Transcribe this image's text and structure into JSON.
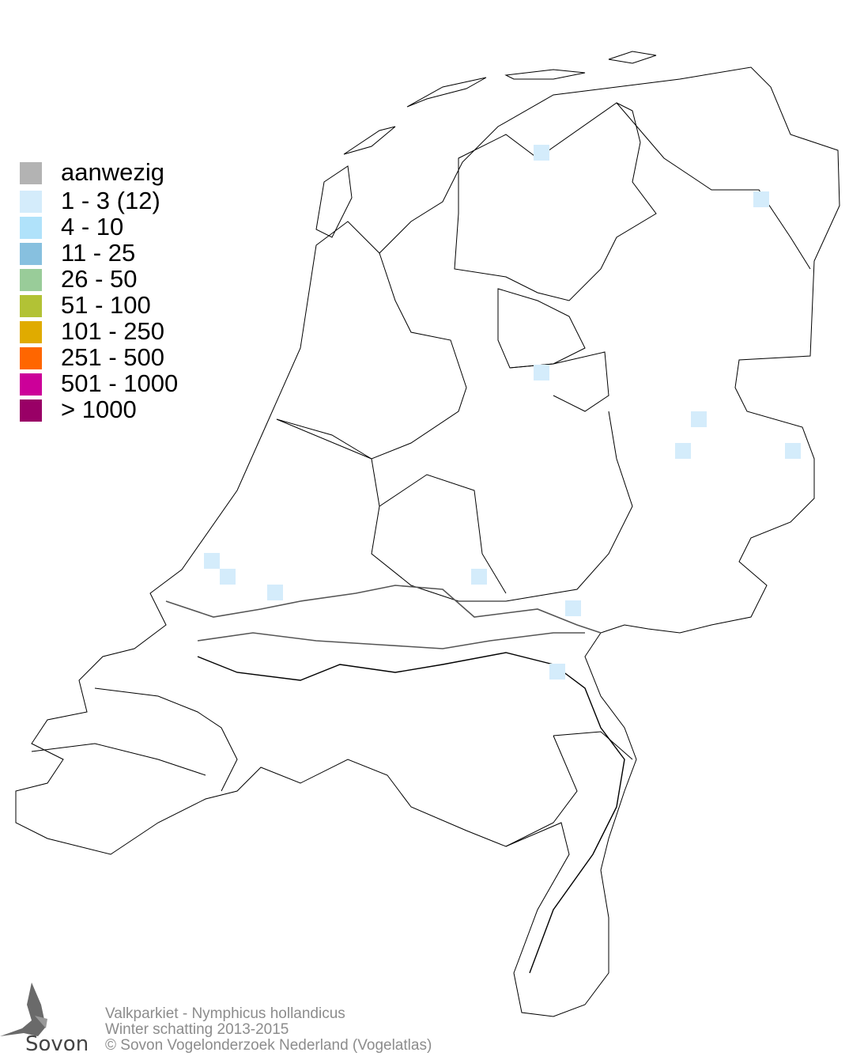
{
  "legend": {
    "items": [
      {
        "label": "aanwezig",
        "color": "#b3b3b3"
      },
      {
        "label": "1 - 3 (12)",
        "color": "#d4ecfb"
      },
      {
        "label": "4 - 10",
        "color": "#b0e2fa"
      },
      {
        "label": "11 - 25",
        "color": "#87c0df"
      },
      {
        "label": "26 - 50",
        "color": "#99cc99"
      },
      {
        "label": "51 - 100",
        "color": "#b2c235"
      },
      {
        "label": "101 - 250",
        "color": "#e0ab00"
      },
      {
        "label": "251 - 500",
        "color": "#ff6600"
      },
      {
        "label": "501 - 1000",
        "color": "#cc0099"
      },
      {
        "label": "> 1000",
        "color": "#990066"
      }
    ]
  },
  "map": {
    "region": "Nederland",
    "occupied_cells_class": "1 - 3",
    "occupied_cells_count": 12
  },
  "footer": {
    "species": "Valkparkiet - Nymphicus hollandicus",
    "period": "Winter schatting 2013-2015",
    "copyright": "© Sovon Vogelonderzoek Nederland (Vogelatlas)"
  },
  "logo": {
    "text": "Sovon"
  }
}
